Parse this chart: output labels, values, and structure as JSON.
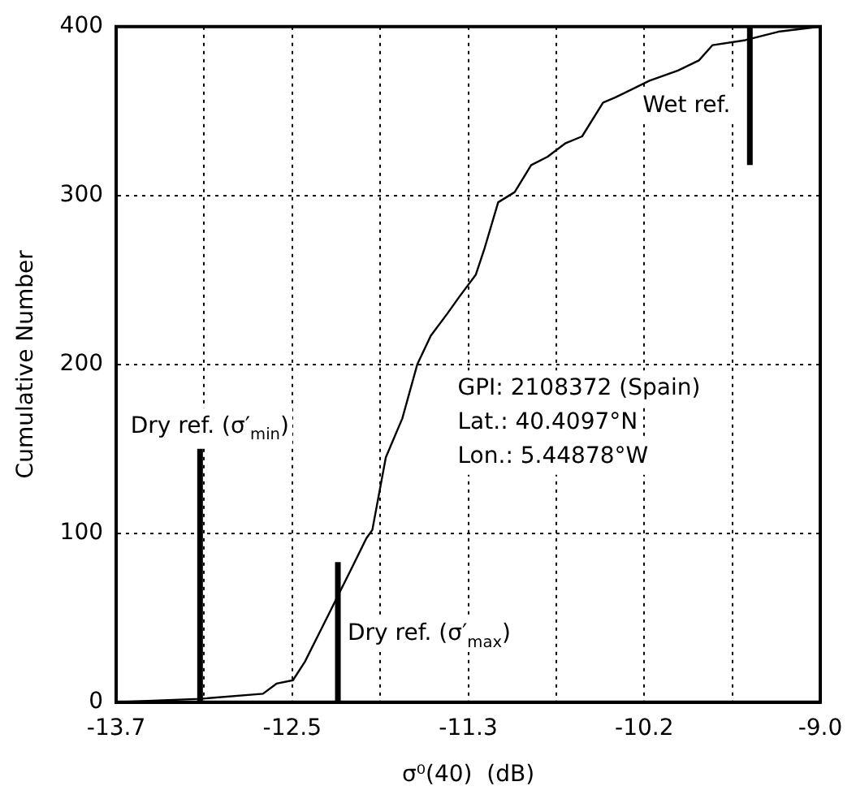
{
  "chart_data": {
    "type": "line",
    "xlabel": "σ⁰(40)  (dB)",
    "ylabel": "Cumulative Number",
    "xlim": [
      -13.7,
      -9.0
    ],
    "ylim": [
      0,
      400
    ],
    "xticks": [
      -13.7,
      {
        "value": -13.1125,
        "label": null
      },
      {
        "value": -12.525,
        "label": "-12.5"
      },
      {
        "value": -11.9375,
        "label": null
      },
      {
        "value": -11.35,
        "label": "-11.3"
      },
      {
        "value": -10.7625,
        "label": null
      },
      {
        "value": -10.175,
        "label": "-10.2"
      },
      {
        "value": -9.5875,
        "label": null
      },
      {
        "value": -9.0,
        "label": "-9.0"
      }
    ],
    "yticks": [
      0,
      100,
      200,
      300,
      400
    ],
    "grid": true,
    "legend": false,
    "marker": "none",
    "line_style": "solid",
    "annotations": [
      "GPI: 2108372 (Spain)",
      "Lat.: 40.4097°N",
      "Lon.: 5.44878°W"
    ],
    "series": [
      {
        "color": "#000000",
        "x": [
          -13.7,
          -13.14,
          -12.72,
          -12.63,
          -12.52,
          -12.44,
          -12.31,
          -12.22,
          -12.13,
          -12.03,
          -11.99,
          -11.9,
          -11.79,
          -11.69,
          -11.6,
          -11.49,
          -11.41,
          -11.3,
          -11.24,
          -11.15,
          -11.04,
          -10.93,
          -10.82,
          -10.7,
          -10.59,
          -10.45,
          -10.37,
          -10.14,
          -9.95,
          -9.81,
          -9.72,
          -9.5,
          -9.28,
          -9.0
        ],
        "values": [
          0,
          2,
          5,
          11,
          13,
          24,
          47,
          63,
          79,
          97,
          102,
          145,
          168,
          200,
          217,
          230,
          240,
          253,
          269,
          296,
          302,
          318,
          323,
          331,
          335,
          355,
          358,
          368,
          374,
          380,
          389,
          392,
          397,
          400
        ]
      },
      {
        "name": "Dry ref. (σ′$_{min}$)",
        "color": "#000000",
        "x": [
          -13.14,
          -13.14
        ],
        "values": [
          0,
          150
        ]
      },
      {
        "name": "Dry ref. (σ′$_{max}$)",
        "color": "#000000",
        "x": [
          -12.22,
          -12.22
        ],
        "values": [
          0,
          83
        ]
      },
      {
        "name": "Wet ref.",
        "color": "#000000",
        "x": [
          -9.47,
          -9.47
        ],
        "values": [
          318,
          400
        ]
      }
    ]
  }
}
